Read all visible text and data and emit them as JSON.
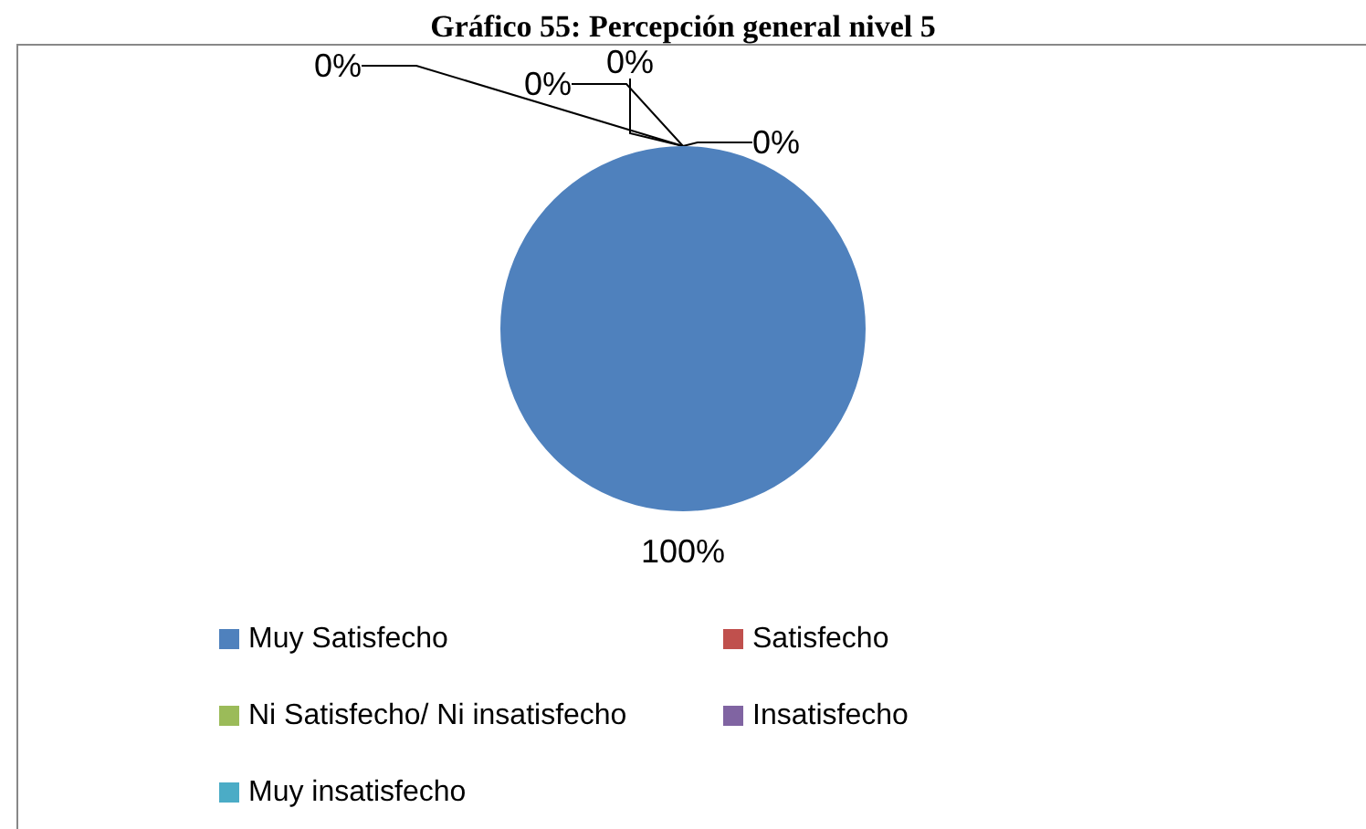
{
  "chart_data": {
    "type": "pie",
    "title": "Gráfico 55: Percepción general nivel 5",
    "categories": [
      "Muy Satisfecho",
      "Satisfecho",
      "Ni Satisfecho/ Ni insatisfecho",
      "Insatisfecho",
      "Muy insatisfecho"
    ],
    "values": [
      100,
      0,
      0,
      0,
      0
    ],
    "colors": [
      "#4f81bd",
      "#c0504d",
      "#9bbb59",
      "#8064a2",
      "#4bacc6"
    ],
    "value_labels": [
      "100%",
      "0%",
      "0%",
      "0%",
      "0%"
    ],
    "legend": "bottom"
  }
}
